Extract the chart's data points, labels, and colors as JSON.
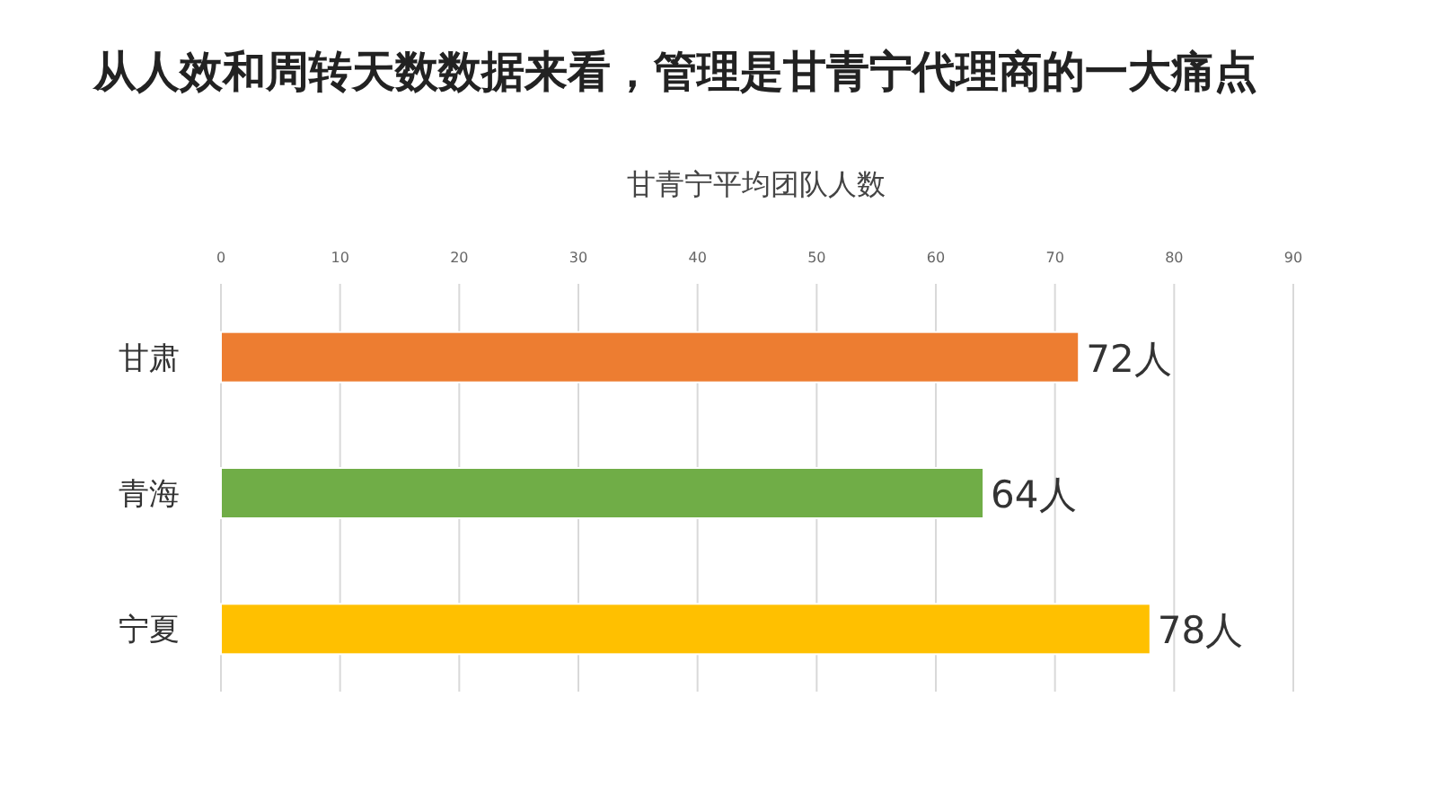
{
  "chart_data": {
    "type": "bar",
    "orientation": "horizontal",
    "title": "从人效和周转天数数据来看，管理是甘青宁代理商的一大痛点",
    "subtitle": "甘青宁平均团队人数",
    "categories": [
      "甘肃",
      "青海",
      "宁夏"
    ],
    "values": [
      72,
      64,
      78
    ],
    "colors": [
      "#ed7d31",
      "#70ad47",
      "#ffc000"
    ],
    "value_labels": [
      "72人",
      "64人",
      "78人"
    ],
    "xlim": [
      0,
      90
    ],
    "xticks": [
      0,
      10,
      20,
      30,
      40,
      50,
      60,
      70,
      80,
      90
    ],
    "grid": "x"
  }
}
